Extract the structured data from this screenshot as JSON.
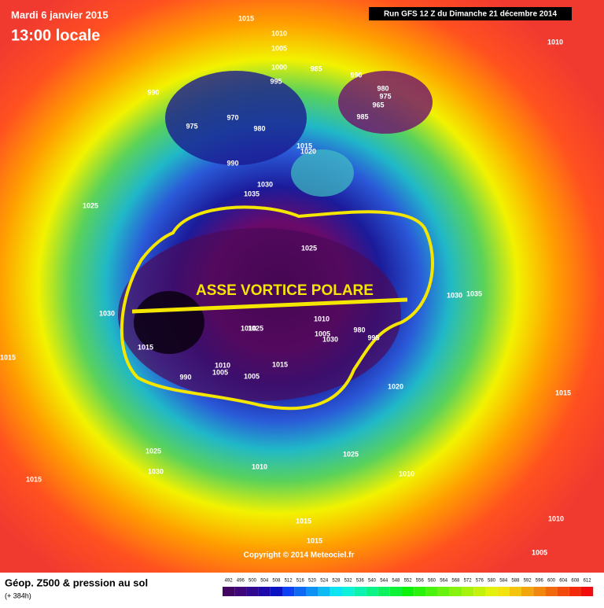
{
  "header": {
    "date": "Mardi 6 janvier 2015",
    "time": "13:00 locale",
    "run": "Run GFS 12 Z du Dimanche 21 décembre 2014"
  },
  "annotation": "ASSE VORTICE POLARE",
  "copyright": "Copyright © 2014 Meteociel.fr",
  "isobar_labels": [
    "1015",
    "1010",
    "1005",
    "1000",
    "995",
    "985",
    "990",
    "980",
    "975",
    "965",
    "990",
    "970",
    "975",
    "980",
    "985",
    "1015",
    "1020",
    "990",
    "1030",
    "1035",
    "1025",
    "1025",
    "1030",
    "1035",
    "1030",
    "1010",
    "1010",
    "1025",
    "980",
    "1005",
    "1030",
    "995",
    "1015",
    "1015",
    "990",
    "1010",
    "1005",
    "1005",
    "1020",
    "1015",
    "1015",
    "1010",
    "1025",
    "1025",
    "1030",
    "1010",
    "1010",
    "1015",
    "1015",
    "1010",
    "1015",
    "1005"
  ],
  "legend": {
    "title": "Géop. Z500 & pression au sol",
    "subtitle": "(+ 384h)",
    "scale": [
      492,
      496,
      500,
      504,
      508,
      512,
      516,
      520,
      524,
      528,
      532,
      536,
      540,
      544,
      548,
      552,
      556,
      560,
      564,
      568,
      572,
      576,
      580,
      584,
      588,
      592,
      596,
      600,
      604,
      608,
      612
    ]
  }
}
